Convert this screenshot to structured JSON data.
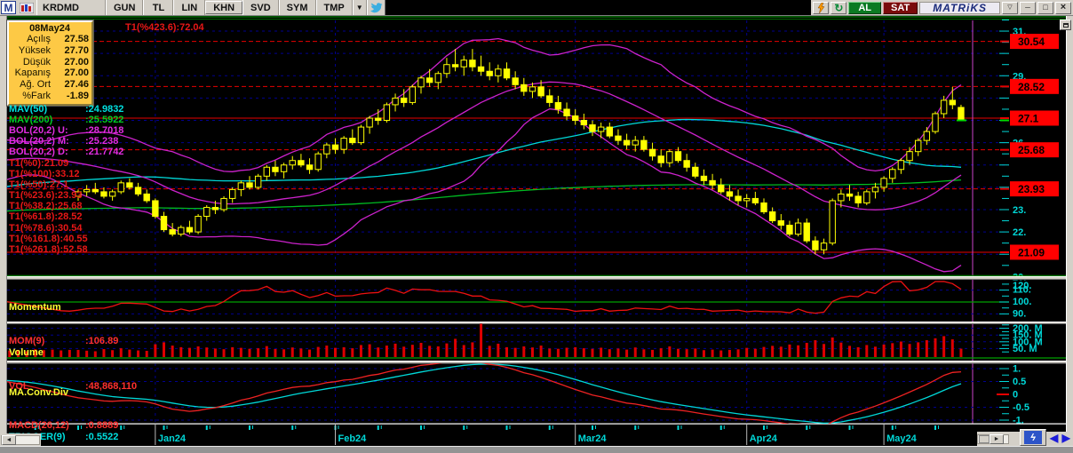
{
  "title_bar": {
    "logo": "M",
    "symbol": "KRDMD",
    "menu_buttons": [
      "GUN",
      "TL",
      "LIN",
      "KHN",
      "SVD",
      "SYM",
      "TMP"
    ],
    "dropdown_icon": "▼",
    "buy_label": "AL",
    "sell_label": "SAT",
    "brand": "MATRiKS",
    "window_buttons": [
      "▽",
      "─",
      "□",
      "×"
    ]
  },
  "info_box": {
    "date": "08May24",
    "rows": [
      {
        "label": "Açılış",
        "value": "27.58"
      },
      {
        "label": "Yüksek",
        "value": "27.70"
      },
      {
        "label": "Düşük",
        "value": "27.00"
      },
      {
        "label": "Kapanış",
        "value": "27.00"
      },
      {
        "label": "Ağ. Ort",
        "value": "27.46"
      },
      {
        "label": "%Fark",
        "value": "-1.89"
      }
    ]
  },
  "overlay_labels": {
    "t1_top": "T1(%423.6):72.04",
    "ma_rows": [
      {
        "name": "MAV(50)",
        "value": ":24.9832",
        "color": "#00e0e0"
      },
      {
        "name": "MAV(200)",
        "value": ":25.5922",
        "color": "#00cc22"
      },
      {
        "name": "BOL(20,2) U:",
        "value": ":28.7018",
        "color": "#e22ce2"
      },
      {
        "name": "BOL(20,2) M:",
        "value": ":25.238",
        "color": "#e22ce2"
      },
      {
        "name": "BOL(20,2) D:",
        "value": ":21.7742",
        "color": "#e22ce2"
      }
    ],
    "t1_rows": [
      "T1(%0):21.09",
      "T1(%100):33.12",
      "T1(%50):27.1",
      "T1(%23.6):23.93",
      "T1(%38.2):25.68",
      "T1(%61.8):28.52",
      "T1(%78.6):30.54",
      "T1(%161.8):40.55",
      "T1(%261.8):52.58"
    ]
  },
  "panels": {
    "momentum": {
      "title": "Momentum",
      "ind_name": "MOM(9)",
      "ind_value": ":106.89",
      "axis_labels": [
        {
          "v": 120,
          "t": "120."
        },
        {
          "v": 110,
          "t": "110."
        },
        {
          "v": 100,
          "t": "100."
        },
        {
          "v": 90,
          "t": "90."
        }
      ]
    },
    "volume": {
      "title": "Volume",
      "ind_name": "VOL",
      "ind_value": ":48,868,110",
      "axis_labels": [
        {
          "v": 200,
          "t": "200. M"
        },
        {
          "v": 150,
          "t": "150. M"
        },
        {
          "v": 100,
          "t": "100. M"
        },
        {
          "v": 50,
          "t": "50. M"
        }
      ]
    },
    "macd": {
      "title": "MA.Conv.Div",
      "rows": [
        {
          "name": "MACD(26,12)",
          "value": ":0.8889",
          "color": "#ff3030"
        },
        {
          "name": "TRIGGER(9)",
          "value": ":0.5522",
          "color": "#00e0e0"
        }
      ],
      "axis_labels": [
        {
          "v": 1,
          "t": "1."
        },
        {
          "v": 0.5,
          "t": "0.5"
        },
        {
          "v": 0,
          "t": "0"
        },
        {
          "v": -0.5,
          "t": "-0.5"
        },
        {
          "v": -1,
          "t": "-1."
        }
      ]
    }
  },
  "price_axis": {
    "int_labels": [
      {
        "v": 31,
        "t": "31."
      },
      {
        "v": 29,
        "t": "29."
      },
      {
        "v": 26,
        "t": "26."
      },
      {
        "v": 24,
        "t": "24."
      },
      {
        "v": 23,
        "t": "23."
      },
      {
        "v": 22,
        "t": "22."
      },
      {
        "v": 20,
        "t": "20."
      }
    ],
    "level_boxes": [
      {
        "v": 30.54,
        "t": "30.54"
      },
      {
        "v": 28.52,
        "t": "28.52"
      },
      {
        "v": 27.1,
        "t": "27.1"
      },
      {
        "v": 25.68,
        "t": "25.68"
      },
      {
        "v": 23.93,
        "t": "23.93"
      },
      {
        "v": 21.09,
        "t": "21.09"
      }
    ]
  },
  "x_axis": {
    "months": [
      {
        "label": "Jan24",
        "index": 9
      },
      {
        "label": "Feb24",
        "index": 30
      },
      {
        "label": "Mar24",
        "index": 58
      },
      {
        "label": "Apr24",
        "index": 78
      },
      {
        "label": "May24",
        "index": 94
      }
    ]
  },
  "chart_data": {
    "type": "candlestick",
    "symbol": "KRDMD",
    "last_bar": {
      "date": "08May24",
      "open": 27.58,
      "high": 27.7,
      "low": 27.0,
      "close": 27.0,
      "wavg": 27.46,
      "pct_change": -1.89
    },
    "price_range": [
      20.2,
      31.6
    ],
    "indicators": {
      "mav50": 24.9832,
      "mav200": 25.5922,
      "bol_upper": 28.7018,
      "bol_mid": 25.238,
      "bol_lower": 21.7742,
      "mom9": 106.89,
      "macd_26_12": 0.8889,
      "trigger9": 0.5522,
      "volume_last": "48,868,110"
    },
    "fib_levels_dashed": [
      30.54,
      28.52,
      25.68,
      23.93
    ],
    "fib_levels_solid": [
      27.1,
      21.09
    ],
    "candles": [
      [
        23.6,
        23.9,
        23.4,
        23.8
      ],
      [
        23.8,
        24.1,
        23.6,
        23.9
      ],
      [
        23.9,
        24.2,
        23.7,
        23.8
      ],
      [
        23.8,
        24.0,
        23.5,
        23.6
      ],
      [
        23.6,
        23.9,
        23.4,
        23.8
      ],
      [
        23.8,
        24.3,
        23.7,
        24.2
      ],
      [
        24.2,
        24.4,
        23.9,
        24.0
      ],
      [
        24.0,
        24.2,
        23.6,
        23.7
      ],
      [
        23.7,
        23.9,
        23.3,
        23.4
      ],
      [
        23.4,
        23.5,
        22.6,
        22.7
      ],
      [
        22.7,
        22.9,
        22.0,
        22.1
      ],
      [
        22.1,
        22.4,
        21.8,
        21.9
      ],
      [
        21.9,
        22.3,
        21.8,
        22.2
      ],
      [
        22.2,
        22.5,
        21.9,
        22.0
      ],
      [
        22.0,
        22.8,
        21.9,
        22.7
      ],
      [
        22.7,
        23.2,
        22.5,
        23.1
      ],
      [
        23.1,
        23.4,
        22.8,
        23.0
      ],
      [
        23.0,
        23.6,
        22.9,
        23.5
      ],
      [
        23.5,
        24.0,
        23.3,
        23.9
      ],
      [
        23.9,
        24.3,
        23.6,
        24.2
      ],
      [
        24.2,
        24.5,
        23.9,
        24.0
      ],
      [
        24.0,
        24.6,
        23.9,
        24.5
      ],
      [
        24.5,
        25.0,
        24.3,
        24.9
      ],
      [
        24.9,
        25.2,
        24.5,
        24.7
      ],
      [
        24.7,
        25.1,
        24.4,
        25.0
      ],
      [
        25.0,
        25.4,
        24.8,
        25.2
      ],
      [
        25.2,
        25.5,
        24.9,
        25.0
      ],
      [
        25.0,
        25.3,
        24.6,
        24.8
      ],
      [
        24.8,
        25.6,
        24.7,
        25.5
      ],
      [
        25.5,
        26.0,
        25.3,
        25.9
      ],
      [
        25.9,
        26.2,
        25.5,
        25.7
      ],
      [
        25.7,
        26.3,
        25.5,
        26.2
      ],
      [
        26.2,
        26.6,
        25.9,
        26.0
      ],
      [
        26.0,
        26.8,
        25.9,
        26.7
      ],
      [
        26.7,
        27.2,
        26.4,
        27.1
      ],
      [
        27.1,
        27.5,
        26.8,
        27.0
      ],
      [
        27.0,
        27.8,
        26.9,
        27.7
      ],
      [
        27.7,
        28.2,
        27.4,
        28.0
      ],
      [
        28.0,
        28.4,
        27.6,
        27.8
      ],
      [
        27.8,
        28.6,
        27.7,
        28.5
      ],
      [
        28.5,
        29.0,
        28.2,
        28.9
      ],
      [
        28.9,
        29.3,
        28.5,
        28.7
      ],
      [
        28.7,
        29.2,
        28.4,
        29.1
      ],
      [
        29.1,
        29.8,
        28.9,
        29.5
      ],
      [
        29.5,
        30.2,
        29.2,
        29.4
      ],
      [
        29.4,
        29.9,
        29.0,
        29.7
      ],
      [
        29.7,
        30.2,
        29.2,
        29.4
      ],
      [
        29.4,
        29.9,
        29.0,
        29.2
      ],
      [
        29.2,
        29.6,
        28.8,
        29.0
      ],
      [
        29.0,
        29.5,
        28.7,
        29.3
      ],
      [
        29.3,
        29.6,
        28.8,
        28.9
      ],
      [
        28.9,
        29.2,
        28.4,
        28.6
      ],
      [
        28.6,
        28.9,
        28.1,
        28.3
      ],
      [
        28.3,
        28.7,
        28.0,
        28.5
      ],
      [
        28.5,
        28.8,
        28.0,
        28.1
      ],
      [
        28.1,
        28.4,
        27.6,
        27.8
      ],
      [
        27.8,
        28.1,
        27.3,
        27.5
      ],
      [
        27.5,
        27.8,
        27.0,
        27.2
      ],
      [
        27.2,
        27.5,
        26.8,
        27.0
      ],
      [
        27.0,
        27.3,
        26.6,
        26.8
      ],
      [
        26.8,
        27.0,
        26.3,
        26.5
      ],
      [
        26.5,
        26.9,
        26.2,
        26.7
      ],
      [
        26.7,
        26.9,
        26.2,
        26.3
      ],
      [
        26.3,
        26.6,
        25.9,
        26.1
      ],
      [
        26.1,
        26.4,
        25.7,
        25.9
      ],
      [
        25.9,
        26.3,
        25.6,
        26.1
      ],
      [
        26.1,
        26.3,
        25.6,
        25.7
      ],
      [
        25.7,
        26.0,
        25.2,
        25.4
      ],
      [
        25.4,
        25.7,
        24.9,
        25.1
      ],
      [
        25.1,
        25.7,
        24.9,
        25.6
      ],
      [
        25.6,
        25.8,
        25.1,
        25.2
      ],
      [
        25.2,
        25.5,
        24.7,
        24.9
      ],
      [
        24.9,
        25.1,
        24.4,
        24.5
      ],
      [
        24.5,
        24.8,
        24.1,
        24.3
      ],
      [
        24.3,
        24.6,
        23.9,
        24.1
      ],
      [
        24.1,
        24.4,
        23.7,
        23.8
      ],
      [
        23.8,
        24.1,
        23.4,
        23.6
      ],
      [
        23.6,
        23.9,
        23.2,
        23.4
      ],
      [
        23.4,
        23.7,
        23.1,
        23.5
      ],
      [
        23.5,
        23.8,
        23.2,
        23.3
      ],
      [
        23.3,
        23.5,
        22.8,
        22.9
      ],
      [
        22.9,
        23.1,
        22.4,
        22.5
      ],
      [
        22.5,
        22.8,
        22.1,
        22.3
      ],
      [
        22.3,
        22.5,
        21.8,
        21.9
      ],
      [
        21.9,
        22.6,
        21.8,
        22.4
      ],
      [
        22.4,
        22.6,
        21.5,
        21.6
      ],
      [
        21.6,
        21.8,
        21.0,
        21.2
      ],
      [
        21.2,
        21.7,
        21.0,
        21.5
      ],
      [
        21.5,
        23.5,
        21.4,
        23.4
      ],
      [
        23.4,
        23.9,
        23.1,
        23.7
      ],
      [
        23.7,
        24.1,
        23.4,
        23.6
      ],
      [
        23.6,
        23.8,
        23.1,
        23.3
      ],
      [
        23.3,
        23.9,
        23.2,
        23.8
      ],
      [
        23.8,
        24.2,
        23.5,
        24.0
      ],
      [
        24.0,
        24.5,
        23.8,
        24.4
      ],
      [
        24.4,
        24.9,
        24.2,
        24.8
      ],
      [
        24.8,
        25.3,
        24.6,
        25.2
      ],
      [
        25.2,
        25.8,
        25.0,
        25.6
      ],
      [
        25.6,
        26.2,
        25.4,
        26.1
      ],
      [
        26.1,
        26.7,
        25.9,
        26.5
      ],
      [
        26.5,
        27.4,
        26.4,
        27.3
      ],
      [
        27.3,
        28.1,
        27.1,
        27.9
      ],
      [
        27.9,
        28.5,
        27.5,
        27.7
      ],
      [
        27.58,
        27.7,
        27.0,
        27.0
      ]
    ],
    "volume_m": [
      40,
      34,
      30,
      46,
      38,
      52,
      42,
      36,
      33,
      82,
      96,
      72,
      60,
      55,
      66,
      58,
      50,
      45,
      60,
      55,
      48,
      52,
      68,
      46,
      44,
      58,
      50,
      42,
      62,
      72,
      55,
      60,
      52,
      76,
      82,
      58,
      72,
      86,
      64,
      78,
      92,
      70,
      66,
      88,
      122,
      76,
      96,
      235,
      70,
      86,
      60,
      55,
      66,
      58,
      72,
      50,
      48,
      56,
      60,
      52,
      48,
      56,
      45,
      50,
      42,
      58,
      44,
      40,
      52,
      66,
      48,
      45,
      50,
      38,
      42,
      36,
      40,
      44,
      55,
      48,
      62,
      70,
      64,
      80,
      74,
      92,
      112,
      84,
      132,
      94,
      70,
      60,
      76,
      64,
      80,
      90,
      102,
      84,
      96,
      112,
      126,
      142,
      118,
      49
    ]
  },
  "colors": {
    "background": "#000000",
    "candle": "#ffff00",
    "bollinger": "#cc22cc",
    "ma50": "#00d8d8",
    "ma200": "#00bb22",
    "fib": "#e80000",
    "grid": "#000090",
    "axis_text": "#00d8d8",
    "momentum_line": "#ee1111",
    "volume_bar": "#dd0000",
    "macd_line": "#ee2222",
    "trigger_line": "#00d8d8",
    "level_box": "#ff0000",
    "green_line": "#00a000",
    "cursor_line": "#cc44cc",
    "chrome": "#d4d0c8",
    "info_box_bg": "#fdc945"
  }
}
